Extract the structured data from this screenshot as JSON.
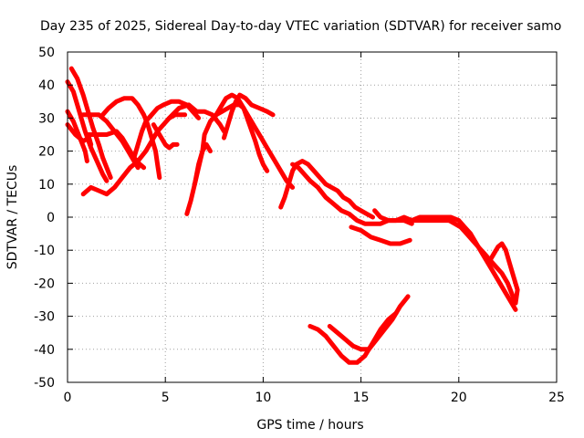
{
  "chart_data": {
    "type": "scatter",
    "title": "Day 235 of 2025, Sidereal Day-to-day VTEC variation (SDTVAR) for receiver samo",
    "xlabel": "GPS time / hours",
    "ylabel": "SDTVAR / TECUs",
    "xlim": [
      0,
      25
    ],
    "ylim": [
      -50,
      50
    ],
    "xticks": [
      "0",
      "5",
      "10",
      "15",
      "20",
      "25"
    ],
    "yticks": [
      "50",
      "40",
      "30",
      "20",
      "10",
      "0",
      "-10",
      "-20",
      "-30",
      "-40",
      "-50"
    ],
    "grid": true,
    "marker_color": "#ff0000",
    "series": [
      {
        "name": "arc-1",
        "points": [
          [
            0.0,
            41
          ],
          [
            0.3,
            38
          ],
          [
            0.6,
            32
          ],
          [
            0.9,
            26
          ],
          [
            1.2,
            21
          ],
          [
            1.5,
            17
          ],
          [
            1.8,
            13
          ],
          [
            2.0,
            11
          ]
        ]
      },
      {
        "name": "arc-2",
        "points": [
          [
            0.2,
            45
          ],
          [
            0.5,
            42
          ],
          [
            0.8,
            37
          ],
          [
            1.1,
            31
          ],
          [
            1.3,
            27
          ],
          [
            1.6,
            22
          ],
          [
            1.8,
            18
          ],
          [
            2.0,
            15
          ],
          [
            2.2,
            12
          ]
        ]
      },
      {
        "name": "arc-3",
        "points": [
          [
            0.0,
            32
          ],
          [
            0.3,
            29
          ],
          [
            0.5,
            26
          ],
          [
            0.7,
            23
          ],
          [
            0.9,
            20
          ],
          [
            1.0,
            17
          ]
        ]
      },
      {
        "name": "arc-4",
        "points": [
          [
            0.0,
            28
          ],
          [
            0.4,
            25
          ],
          [
            0.8,
            23
          ],
          [
            1.1,
            24
          ],
          [
            1.2,
            22
          ]
        ]
      },
      {
        "name": "arc-5",
        "points": [
          [
            0.8,
            31
          ],
          [
            1.2,
            31
          ],
          [
            1.6,
            31
          ],
          [
            2.0,
            29
          ],
          [
            2.4,
            26
          ],
          [
            2.8,
            23
          ],
          [
            3.1,
            20
          ],
          [
            3.4,
            17
          ],
          [
            3.6,
            15
          ]
        ]
      },
      {
        "name": "arc-6",
        "points": [
          [
            1.0,
            25
          ],
          [
            1.5,
            25
          ],
          [
            2.0,
            25
          ],
          [
            2.5,
            26
          ],
          [
            2.8,
            24
          ],
          [
            3.1,
            21
          ],
          [
            3.4,
            18
          ],
          [
            3.7,
            16
          ],
          [
            3.9,
            15
          ]
        ]
      },
      {
        "name": "arc-7",
        "points": [
          [
            0.8,
            7
          ],
          [
            1.2,
            9
          ],
          [
            1.6,
            8
          ],
          [
            2.0,
            7
          ],
          [
            2.4,
            9
          ],
          [
            2.8,
            12
          ],
          [
            3.2,
            15
          ],
          [
            3.6,
            17
          ],
          [
            4.0,
            20
          ],
          [
            4.3,
            23
          ],
          [
            4.6,
            26
          ],
          [
            4.9,
            28
          ],
          [
            5.2,
            30
          ],
          [
            5.5,
            31
          ],
          [
            5.8,
            31
          ],
          [
            6.0,
            31
          ]
        ]
      },
      {
        "name": "arc-8",
        "points": [
          [
            1.8,
            31
          ],
          [
            2.1,
            33
          ],
          [
            2.5,
            35
          ],
          [
            2.9,
            36
          ],
          [
            3.3,
            36
          ],
          [
            3.6,
            34
          ],
          [
            3.9,
            31
          ],
          [
            4.1,
            28
          ],
          [
            4.3,
            24
          ],
          [
            4.5,
            20
          ],
          [
            4.6,
            16
          ],
          [
            4.7,
            12
          ]
        ]
      },
      {
        "name": "arc-9",
        "points": [
          [
            3.4,
            18
          ],
          [
            3.6,
            22
          ],
          [
            3.8,
            26
          ],
          [
            4.0,
            29
          ],
          [
            4.3,
            31
          ],
          [
            4.6,
            33
          ],
          [
            4.9,
            34
          ],
          [
            5.3,
            35
          ],
          [
            5.7,
            35
          ],
          [
            6.1,
            34
          ],
          [
            6.4,
            32
          ],
          [
            6.7,
            30
          ]
        ]
      },
      {
        "name": "arc-10",
        "points": [
          [
            4.4,
            28
          ],
          [
            4.6,
            26
          ],
          [
            4.8,
            24
          ],
          [
            5.0,
            22
          ],
          [
            5.2,
            21
          ],
          [
            5.4,
            22
          ],
          [
            5.6,
            22
          ]
        ]
      },
      {
        "name": "arc-11",
        "points": [
          [
            6.1,
            1
          ],
          [
            6.3,
            5
          ],
          [
            6.5,
            10
          ],
          [
            6.7,
            16
          ],
          [
            6.9,
            20
          ],
          [
            7.1,
            22
          ],
          [
            7.3,
            20
          ]
        ]
      },
      {
        "name": "arc-12",
        "points": [
          [
            6.5,
            10
          ],
          [
            6.7,
            15
          ],
          [
            6.9,
            20
          ],
          [
            7.0,
            25
          ],
          [
            7.3,
            29
          ],
          [
            7.6,
            31
          ],
          [
            7.9,
            32
          ],
          [
            8.2,
            33
          ],
          [
            8.5,
            34
          ],
          [
            8.8,
            34
          ],
          [
            9.0,
            33
          ],
          [
            9.3,
            30
          ],
          [
            9.6,
            27
          ],
          [
            9.9,
            24
          ],
          [
            10.1,
            22
          ],
          [
            10.3,
            20
          ],
          [
            10.6,
            17
          ],
          [
            10.9,
            14
          ],
          [
            11.2,
            11
          ],
          [
            11.5,
            9
          ]
        ]
      },
      {
        "name": "arc-13",
        "points": [
          [
            5.2,
            30
          ],
          [
            5.7,
            33
          ],
          [
            6.2,
            34
          ],
          [
            6.6,
            32
          ],
          [
            7.0,
            32
          ],
          [
            7.4,
            31
          ],
          [
            7.8,
            28
          ],
          [
            8.0,
            26
          ]
        ]
      },
      {
        "name": "arc-14",
        "points": [
          [
            7.5,
            30
          ],
          [
            7.8,
            33
          ],
          [
            8.1,
            36
          ],
          [
            8.4,
            37
          ],
          [
            8.7,
            36
          ],
          [
            9.0,
            33
          ],
          [
            9.3,
            28
          ],
          [
            9.6,
            23
          ],
          [
            9.8,
            19
          ],
          [
            10.0,
            16
          ],
          [
            10.2,
            14
          ]
        ]
      },
      {
        "name": "arc-15",
        "points": [
          [
            8.0,
            24
          ],
          [
            8.2,
            28
          ],
          [
            8.4,
            32
          ],
          [
            8.6,
            35
          ],
          [
            8.8,
            37
          ],
          [
            9.1,
            36
          ],
          [
            9.4,
            34
          ],
          [
            9.8,
            33
          ],
          [
            10.2,
            32
          ],
          [
            10.5,
            31
          ]
        ]
      },
      {
        "name": "arc-16",
        "points": [
          [
            10.9,
            3
          ],
          [
            11.1,
            6
          ],
          [
            11.3,
            10
          ],
          [
            11.5,
            14
          ],
          [
            11.7,
            16
          ],
          [
            12.0,
            17
          ],
          [
            12.3,
            16
          ],
          [
            12.6,
            14
          ],
          [
            12.9,
            12
          ],
          [
            13.2,
            10
          ],
          [
            13.5,
            9
          ],
          [
            13.8,
            8
          ],
          [
            14.1,
            6
          ],
          [
            14.4,
            5
          ],
          [
            14.7,
            3
          ],
          [
            15.0,
            2
          ],
          [
            15.3,
            1
          ],
          [
            15.6,
            0
          ]
        ]
      },
      {
        "name": "arc-17",
        "points": [
          [
            11.5,
            16
          ],
          [
            11.8,
            15
          ],
          [
            12.1,
            13
          ],
          [
            12.4,
            11
          ],
          [
            12.8,
            9
          ],
          [
            13.2,
            6
          ],
          [
            13.6,
            4
          ],
          [
            14.0,
            2
          ],
          [
            14.4,
            1
          ],
          [
            14.8,
            -1
          ],
          [
            15.2,
            -2
          ],
          [
            15.6,
            -2
          ],
          [
            16.0,
            -2
          ],
          [
            16.4,
            -1
          ],
          [
            16.8,
            -1
          ],
          [
            17.2,
            -1
          ],
          [
            17.6,
            -2
          ]
        ]
      },
      {
        "name": "arc-18",
        "points": [
          [
            14.5,
            -3
          ],
          [
            15.0,
            -4
          ],
          [
            15.5,
            -6
          ],
          [
            16.0,
            -7
          ],
          [
            16.5,
            -8
          ],
          [
            17.0,
            -8
          ],
          [
            17.5,
            -7
          ]
        ]
      },
      {
        "name": "arc-19",
        "points": [
          [
            15.7,
            2
          ],
          [
            16.0,
            0
          ],
          [
            16.4,
            -1
          ],
          [
            16.8,
            -1
          ],
          [
            17.2,
            0
          ],
          [
            17.6,
            -1
          ],
          [
            18.0,
            -1
          ],
          [
            18.4,
            -1
          ],
          [
            18.8,
            -1
          ],
          [
            19.2,
            -1
          ],
          [
            19.5,
            -1
          ]
        ]
      },
      {
        "name": "arc-20",
        "points": [
          [
            17.2,
            -1
          ],
          [
            17.6,
            -1
          ],
          [
            18.0,
            0
          ],
          [
            18.4,
            0
          ],
          [
            18.8,
            0
          ],
          [
            19.2,
            0
          ],
          [
            19.6,
            0
          ],
          [
            20.0,
            -1
          ],
          [
            20.3,
            -3
          ],
          [
            20.6,
            -5
          ],
          [
            20.9,
            -8
          ],
          [
            21.2,
            -11
          ],
          [
            21.5,
            -14
          ],
          [
            21.8,
            -17
          ],
          [
            22.1,
            -20
          ],
          [
            22.4,
            -23
          ],
          [
            22.7,
            -26
          ],
          [
            22.9,
            -28
          ]
        ]
      },
      {
        "name": "arc-21",
        "points": [
          [
            19.5,
            -1
          ],
          [
            19.8,
            -2
          ],
          [
            20.1,
            -3
          ],
          [
            20.4,
            -5
          ],
          [
            20.7,
            -7
          ],
          [
            21.0,
            -9
          ],
          [
            21.3,
            -11
          ],
          [
            21.6,
            -13
          ],
          [
            21.9,
            -15
          ],
          [
            22.2,
            -17
          ],
          [
            22.5,
            -20
          ],
          [
            22.7,
            -23
          ],
          [
            22.9,
            -26
          ]
        ]
      },
      {
        "name": "arc-22",
        "points": [
          [
            21.6,
            -13
          ],
          [
            21.8,
            -11
          ],
          [
            22.0,
            -9
          ],
          [
            22.2,
            -8
          ],
          [
            22.4,
            -10
          ],
          [
            22.6,
            -14
          ],
          [
            22.8,
            -18
          ],
          [
            23.0,
            -22
          ],
          [
            22.9,
            -26
          ]
        ]
      },
      {
        "name": "arc-23",
        "points": [
          [
            12.4,
            -33
          ],
          [
            12.8,
            -34
          ],
          [
            13.2,
            -36
          ],
          [
            13.6,
            -39
          ],
          [
            14.0,
            -42
          ],
          [
            14.4,
            -44
          ],
          [
            14.8,
            -44
          ],
          [
            15.2,
            -42
          ],
          [
            15.6,
            -38
          ],
          [
            16.0,
            -34
          ],
          [
            16.4,
            -31
          ],
          [
            16.8,
            -29
          ]
        ]
      },
      {
        "name": "arc-24",
        "points": [
          [
            13.4,
            -33
          ],
          [
            13.8,
            -35
          ],
          [
            14.2,
            -37
          ],
          [
            14.6,
            -39
          ],
          [
            15.0,
            -40
          ],
          [
            15.4,
            -40
          ],
          [
            15.8,
            -37
          ],
          [
            16.2,
            -34
          ],
          [
            16.6,
            -31
          ],
          [
            17.0,
            -27
          ],
          [
            17.4,
            -24
          ]
        ]
      }
    ]
  }
}
